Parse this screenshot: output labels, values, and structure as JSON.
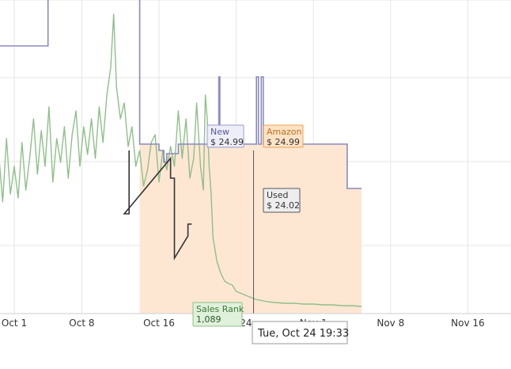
{
  "chart_data": {
    "type": "line",
    "x_ticks": [
      "Oct 1",
      "Oct 8",
      "Oct 16",
      "Oct 24",
      "Nov 1",
      "Nov 8",
      "Nov 16"
    ],
    "crosshair_label": "Tue, Oct 24 19:33",
    "grid": true,
    "colors": {
      "new": "#8a8abf",
      "amazon": "#f0a050",
      "amazon_fill": "#fde7d3",
      "used": "#333333",
      "sales_rank": "#8fbf8a",
      "grid": "#e6e6e6"
    },
    "tooltips": {
      "new": {
        "name": "New",
        "value": "$ 24.99"
      },
      "amazon": {
        "name": "Amazon",
        "value": "$ 24.99"
      },
      "used": {
        "name": "Used",
        "value": "$ 24.02"
      },
      "sales_rank": {
        "name": "Sales Rank",
        "value": "1,089"
      }
    },
    "series": [
      {
        "name": "New",
        "points": [
          [
            -6.0,
            58
          ],
          [
            3.5,
            58
          ],
          [
            3.5,
            -5
          ],
          [
            13.0,
            -5
          ],
          [
            13.0,
            182
          ],
          [
            15.0,
            182
          ],
          [
            15.0,
            190
          ],
          [
            15.5,
            190
          ],
          [
            15.5,
            205
          ],
          [
            15.8,
            205
          ],
          [
            15.8,
            194
          ],
          [
            17.0,
            194
          ],
          [
            17.0,
            182
          ],
          [
            21.2,
            182
          ],
          [
            21.2,
            97
          ],
          [
            21.3,
            97
          ],
          [
            21.3,
            182
          ],
          [
            25.1,
            182
          ],
          [
            25.1,
            97
          ],
          [
            25.3,
            97
          ],
          [
            25.3,
            182
          ],
          [
            25.6,
            182
          ],
          [
            25.6,
            97
          ],
          [
            25.8,
            97
          ],
          [
            25.8,
            182
          ],
          [
            34.5,
            182
          ],
          [
            34.5,
            238
          ],
          [
            36,
            238
          ]
        ]
      },
      {
        "name": "Amazon",
        "points": [
          [
            13.0,
            182
          ],
          [
            15.0,
            182
          ],
          [
            15.0,
            190
          ],
          [
            15.5,
            190
          ],
          [
            15.5,
            205
          ],
          [
            15.8,
            205
          ],
          [
            15.8,
            194
          ],
          [
            17.0,
            194
          ],
          [
            17.0,
            182
          ],
          [
            34.5,
            182
          ],
          [
            34.5,
            238
          ],
          [
            36,
            238
          ]
        ]
      },
      {
        "name": "Used",
        "points": [
          [
            11.9,
            190
          ],
          [
            11.9,
            270
          ],
          [
            11.4,
            270
          ],
          [
            16.2,
            200
          ],
          [
            16.2,
            225
          ],
          [
            16.6,
            225
          ],
          [
            16.6,
            326
          ],
          [
            18.0,
            298
          ],
          [
            18.0,
            283
          ],
          [
            18.4,
            283
          ]
        ]
      },
      {
        "name": "Sales Rank",
        "points": [
          [
            -6.0,
            280
          ],
          [
            -5.6,
            220
          ],
          [
            -5.2,
            255
          ],
          [
            -4.8,
            190
          ],
          [
            -4.4,
            265
          ],
          [
            -4.0,
            235
          ],
          [
            -3.6,
            200
          ],
          [
            -3.2,
            260
          ],
          [
            -2.8,
            210
          ],
          [
            -2.4,
            268
          ],
          [
            -2.0,
            230
          ],
          [
            -1.6,
            195
          ],
          [
            -1.2,
            255
          ],
          [
            -0.8,
            175
          ],
          [
            -0.4,
            245
          ],
          [
            0,
            210
          ],
          [
            0.4,
            250
          ],
          [
            0.8,
            180
          ],
          [
            1.2,
            240
          ],
          [
            1.6,
            200
          ],
          [
            2.0,
            150
          ],
          [
            2.4,
            220
          ],
          [
            2.8,
            165
          ],
          [
            3.2,
            210
          ],
          [
            3.6,
            135
          ],
          [
            4.0,
            230
          ],
          [
            4.4,
            175
          ],
          [
            4.8,
            205
          ],
          [
            5.2,
            160
          ],
          [
            5.6,
            225
          ],
          [
            6.0,
            170
          ],
          [
            6.4,
            140
          ],
          [
            6.8,
            210
          ],
          [
            7.2,
            160
          ],
          [
            7.6,
            195
          ],
          [
            8.0,
            150
          ],
          [
            8.4,
            200
          ],
          [
            8.8,
            135
          ],
          [
            9.2,
            180
          ],
          [
            9.6,
            120
          ],
          [
            10.0,
            85
          ],
          [
            10.3,
            18
          ],
          [
            10.6,
            110
          ],
          [
            11.0,
            150
          ],
          [
            11.4,
            130
          ],
          [
            11.8,
            185
          ],
          [
            12.2,
            160
          ],
          [
            12.6,
            210
          ],
          [
            13.0,
            190
          ],
          [
            13.4,
            235
          ],
          [
            13.8,
            215
          ],
          [
            14.2,
            180
          ],
          [
            14.6,
            170
          ],
          [
            15.0,
            230
          ],
          [
            15.4,
            190
          ],
          [
            15.8,
            215
          ],
          [
            16.2,
            185
          ],
          [
            16.6,
            210
          ],
          [
            17.0,
            140
          ],
          [
            17.4,
            200
          ],
          [
            17.8,
            150
          ],
          [
            18.2,
            225
          ],
          [
            18.6,
            200
          ],
          [
            18.9,
            130
          ],
          [
            19.3,
            210
          ],
          [
            19.6,
            240
          ],
          [
            19.8,
            120
          ],
          [
            20.0,
            150
          ],
          [
            20.2,
            210
          ],
          [
            20.4,
            245
          ],
          [
            20.6,
            300
          ],
          [
            21.0,
            330
          ],
          [
            21.4,
            345
          ],
          [
            21.8,
            355
          ],
          [
            22.2,
            358
          ],
          [
            22.6,
            360
          ],
          [
            23.0,
            368
          ],
          [
            23.4,
            370
          ],
          [
            23.8,
            372
          ],
          [
            24.2,
            374
          ],
          [
            24.6,
            376
          ],
          [
            25.0,
            378
          ],
          [
            25.4,
            379
          ],
          [
            25.8,
            380
          ],
          [
            26.2,
            381
          ],
          [
            27.0,
            382
          ],
          [
            28.0,
            383
          ],
          [
            29.0,
            383
          ],
          [
            30.0,
            384
          ],
          [
            31.0,
            384
          ],
          [
            32.0,
            385
          ],
          [
            33.0,
            385
          ],
          [
            34.0,
            386
          ],
          [
            35.0,
            386
          ],
          [
            36,
            387
          ]
        ]
      }
    ]
  }
}
